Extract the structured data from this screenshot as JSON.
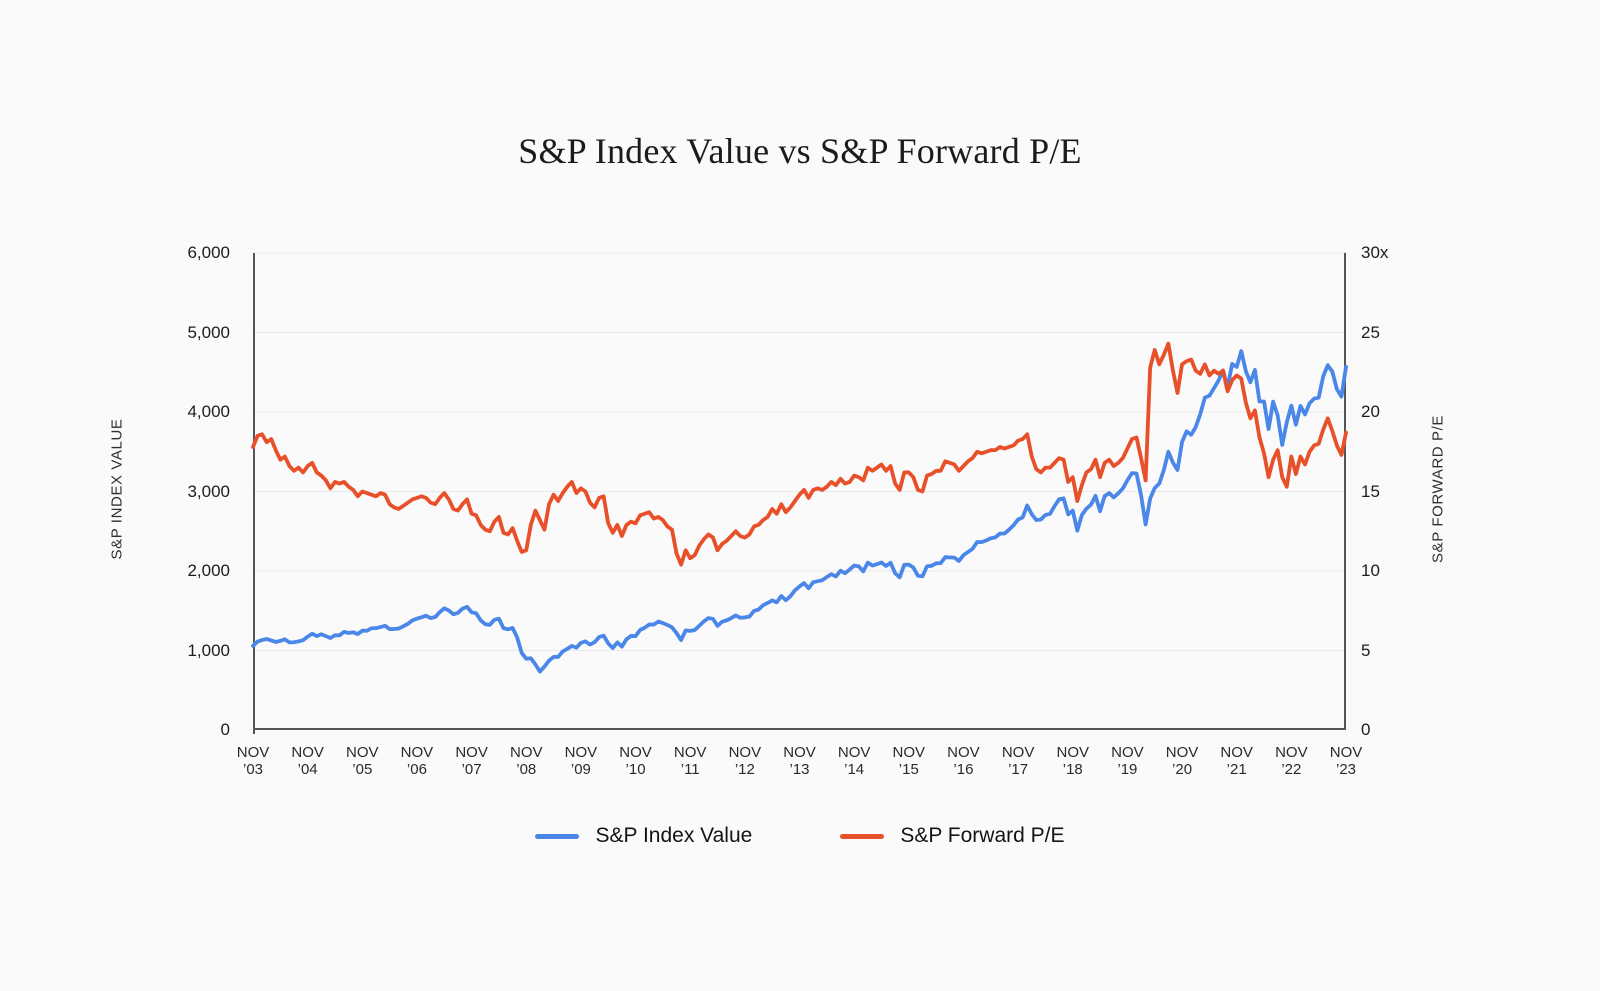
{
  "page": {
    "background": "#fafafa"
  },
  "title": "S&P Index Value vs S&P Forward P/E",
  "legend": {
    "items": [
      {
        "label": "S&P Index Value",
        "color": "#4a87e8"
      },
      {
        "label": "S&P Forward P/E",
        "color": "#e8502a"
      }
    ]
  },
  "chart_data": {
    "type": "line",
    "title": "S&P Index Value vs S&P Forward P/E",
    "grid": true,
    "grid_color": "#e9e9e9",
    "axis_line_color": "#555555",
    "left_axis": {
      "title": "S&P INDEX VALUE",
      "min": 0,
      "max": 6000,
      "ticks": [
        "6,000",
        "5,000",
        "4,000",
        "3,000",
        "2,000",
        "1,000",
        "0"
      ]
    },
    "right_axis": {
      "title": "S&P FORWARD P/E",
      "min": 0,
      "max": 30,
      "ticks": [
        "30x",
        "25",
        "20",
        "15",
        "10",
        "5",
        "0"
      ]
    },
    "x_ticks": [
      {
        "month": "NOV",
        "year": "’03"
      },
      {
        "month": "NOV",
        "year": "’04"
      },
      {
        "month": "NOV",
        "year": "’05"
      },
      {
        "month": "NOV",
        "year": "’06"
      },
      {
        "month": "NOV",
        "year": "’07"
      },
      {
        "month": "NOV",
        "year": "’08"
      },
      {
        "month": "NOV",
        "year": "’09"
      },
      {
        "month": "NOV",
        "year": "’10"
      },
      {
        "month": "NOV",
        "year": "’11"
      },
      {
        "month": "NOV",
        "year": "’12"
      },
      {
        "month": "NOV",
        "year": "’13"
      },
      {
        "month": "NOV",
        "year": "’14"
      },
      {
        "month": "NOV",
        "year": "’15"
      },
      {
        "month": "NOV",
        "year": "’16"
      },
      {
        "month": "NOV",
        "year": "’17"
      },
      {
        "month": "NOV",
        "year": "’18"
      },
      {
        "month": "NOV",
        "year": "’19"
      },
      {
        "month": "NOV",
        "year": "’20"
      },
      {
        "month": "NOV",
        "year": "’21"
      },
      {
        "month": "NOV",
        "year": "’22"
      },
      {
        "month": "NOV",
        "year": "’23"
      }
    ],
    "x_start": "Nov 2003",
    "x_end": "Nov 2023",
    "points_per_year": 12,
    "series": [
      {
        "name": "S&P Index Value",
        "axis": "left",
        "color": "#4a87e8",
        "values": [
          1058,
          1112,
          1131,
          1145,
          1126,
          1107,
          1121,
          1141,
          1102,
          1104,
          1115,
          1130,
          1174,
          1212,
          1181,
          1204,
          1181,
          1157,
          1192,
          1191,
          1234,
          1220,
          1229,
          1207,
          1249,
          1248,
          1280,
          1281,
          1295,
          1311,
          1270,
          1270,
          1277,
          1304,
          1336,
          1378,
          1401,
          1418,
          1438,
          1407,
          1421,
          1482,
          1531,
          1503,
          1455,
          1474,
          1527,
          1549,
          1481,
          1468,
          1379,
          1331,
          1323,
          1386,
          1400,
          1280,
          1267,
          1283,
          1166,
          969,
          896,
          903,
          826,
          735,
          798,
          873,
          919,
          919,
          987,
          1021,
          1057,
          1036,
          1096,
          1115,
          1074,
          1104,
          1169,
          1187,
          1089,
          1031,
          1102,
          1049,
          1141,
          1183,
          1181,
          1258,
          1286,
          1327,
          1326,
          1364,
          1345,
          1321,
          1292,
          1219,
          1131,
          1253,
          1247,
          1258,
          1312,
          1366,
          1408,
          1398,
          1310,
          1362,
          1379,
          1407,
          1441,
          1412,
          1416,
          1426,
          1498,
          1515,
          1569,
          1598,
          1631,
          1606,
          1686,
          1633,
          1682,
          1757,
          1806,
          1848,
          1783,
          1859,
          1872,
          1884,
          1924,
          1960,
          1931,
          2003,
          1972,
          2018,
          2068,
          2059,
          1995,
          2105,
          2068,
          2086,
          2107,
          2063,
          2104,
          1972,
          1920,
          2079,
          2080,
          2044,
          1940,
          1932,
          2060,
          2065,
          2097,
          2099,
          2174,
          2171,
          2168,
          2126,
          2199,
          2239,
          2279,
          2364,
          2363,
          2384,
          2412,
          2423,
          2470,
          2472,
          2519,
          2575,
          2648,
          2674,
          2824,
          2714,
          2641,
          2648,
          2705,
          2718,
          2816,
          2902,
          2914,
          2712,
          2760,
          2507,
          2704,
          2784,
          2834,
          2946,
          2752,
          2942,
          2980,
          2926,
          2977,
          3038,
          3141,
          3231,
          3226,
          2954,
          2585,
          2912,
          3044,
          3100,
          3271,
          3500,
          3363,
          3270,
          3622,
          3756,
          3714,
          3811,
          3973,
          4181,
          4204,
          4298,
          4395,
          4523,
          4308,
          4605,
          4567,
          4766,
          4516,
          4374,
          4530,
          4132,
          4132,
          3785,
          4130,
          3955,
          3586,
          3872,
          4080,
          3840,
          4077,
          3970,
          4109,
          4169,
          4180,
          4450,
          4589,
          4508,
          4288,
          4194,
          4568
        ]
      },
      {
        "name": "S&P Forward P/E",
        "axis": "right",
        "color": "#e8502a",
        "values": [
          17.8,
          18.5,
          18.6,
          18.1,
          18.3,
          17.6,
          17.0,
          17.2,
          16.6,
          16.3,
          16.5,
          16.2,
          16.6,
          16.8,
          16.2,
          16.0,
          15.7,
          15.2,
          15.6,
          15.5,
          15.6,
          15.3,
          15.1,
          14.7,
          15.0,
          14.9,
          14.8,
          14.7,
          14.9,
          14.8,
          14.2,
          14.0,
          13.9,
          14.1,
          14.3,
          14.5,
          14.6,
          14.7,
          14.6,
          14.3,
          14.2,
          14.6,
          14.9,
          14.5,
          13.9,
          13.8,
          14.2,
          14.5,
          13.6,
          13.5,
          12.9,
          12.6,
          12.5,
          13.1,
          13.4,
          12.4,
          12.3,
          12.7,
          11.9,
          11.2,
          11.3,
          12.9,
          13.8,
          13.2,
          12.6,
          14.2,
          14.8,
          14.4,
          14.9,
          15.3,
          15.6,
          14.9,
          15.2,
          15.0,
          14.3,
          14.0,
          14.6,
          14.7,
          13.0,
          12.4,
          12.9,
          12.2,
          12.9,
          13.1,
          13.0,
          13.5,
          13.6,
          13.7,
          13.3,
          13.4,
          13.2,
          12.8,
          12.6,
          11.1,
          10.4,
          11.3,
          10.8,
          11.0,
          11.6,
          12.0,
          12.3,
          12.1,
          11.3,
          11.7,
          11.9,
          12.2,
          12.5,
          12.2,
          12.1,
          12.3,
          12.8,
          12.9,
          13.2,
          13.4,
          13.9,
          13.6,
          14.2,
          13.7,
          14.0,
          14.4,
          14.8,
          15.1,
          14.6,
          15.1,
          15.2,
          15.1,
          15.3,
          15.6,
          15.4,
          15.8,
          15.5,
          15.6,
          16.0,
          15.9,
          15.7,
          16.5,
          16.3,
          16.5,
          16.7,
          16.3,
          16.6,
          15.5,
          15.1,
          16.2,
          16.2,
          15.9,
          15.1,
          15.0,
          16.0,
          16.1,
          16.3,
          16.3,
          16.9,
          16.8,
          16.7,
          16.3,
          16.6,
          16.9,
          17.1,
          17.5,
          17.4,
          17.5,
          17.6,
          17.6,
          17.8,
          17.7,
          17.8,
          17.9,
          18.2,
          18.3,
          18.6,
          17.2,
          16.4,
          16.2,
          16.5,
          16.5,
          16.8,
          17.1,
          17.0,
          15.6,
          15.9,
          14.4,
          15.4,
          16.2,
          16.4,
          17.0,
          15.9,
          16.8,
          17.0,
          16.6,
          16.8,
          17.1,
          17.7,
          18.3,
          18.4,
          17.1,
          15.7,
          22.8,
          23.9,
          23.0,
          23.6,
          24.3,
          22.6,
          21.2,
          23.0,
          23.2,
          23.3,
          22.6,
          22.4,
          23.0,
          22.3,
          22.6,
          22.4,
          22.6,
          21.3,
          22.0,
          22.3,
          22.1,
          20.6,
          19.6,
          20.1,
          18.4,
          17.4,
          15.9,
          17.0,
          17.6,
          15.9,
          15.3,
          17.2,
          16.1,
          17.2,
          16.7,
          17.5,
          17.9,
          18.0,
          18.9,
          19.6,
          18.8,
          17.9,
          17.3,
          18.7
        ]
      }
    ]
  }
}
